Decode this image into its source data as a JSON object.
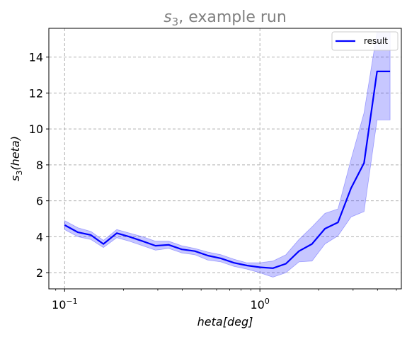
{
  "chart_data": {
    "type": "line",
    "title_main": "s",
    "title_sub": "3",
    "title_rest": ", example run",
    "xlabel": "heta[deg]",
    "ylabel_main": "s",
    "ylabel_sub": "3",
    "ylabel_rest": "(heta)",
    "xscale": "log",
    "xlim": [
      0.083,
      5.3
    ],
    "ylim": [
      1.1,
      15.6
    ],
    "x_tick_labels": [
      {
        "value": 0.1,
        "base": "10",
        "exp": "−1"
      },
      {
        "value": 1,
        "base": "10",
        "exp": "0"
      }
    ],
    "y_ticks": [
      2,
      4,
      6,
      8,
      10,
      12,
      14
    ],
    "grid": true,
    "legend": {
      "position": "top-right",
      "entries": [
        "result"
      ]
    },
    "series": [
      {
        "name": "result",
        "color": "#0000ff",
        "band_color": "#0000ff",
        "x": [
          0.1,
          0.117,
          0.136,
          0.158,
          0.185,
          0.215,
          0.251,
          0.292,
          0.341,
          0.398,
          0.464,
          0.541,
          0.631,
          0.736,
          0.858,
          1.0,
          1.166,
          1.359,
          1.585,
          1.848,
          2.154,
          2.512,
          2.929,
          3.415,
          3.981,
          4.64
        ],
        "values": [
          4.65,
          4.25,
          4.1,
          3.6,
          4.2,
          4.0,
          3.75,
          3.5,
          3.55,
          3.3,
          3.2,
          2.95,
          2.8,
          2.55,
          2.4,
          2.3,
          2.25,
          2.5,
          3.2,
          3.6,
          4.45,
          4.8,
          6.7,
          8.1,
          13.2,
          13.2
        ],
        "lower": [
          4.4,
          4.0,
          3.85,
          3.4,
          3.95,
          3.75,
          3.5,
          3.25,
          3.35,
          3.1,
          3.0,
          2.7,
          2.6,
          2.35,
          2.2,
          2.0,
          1.75,
          2.0,
          2.6,
          2.65,
          3.6,
          4.05,
          5.1,
          5.4,
          10.5,
          10.5
        ],
        "upper": [
          4.9,
          4.5,
          4.3,
          3.8,
          4.4,
          4.2,
          4.0,
          3.75,
          3.75,
          3.5,
          3.35,
          3.15,
          3.0,
          2.75,
          2.55,
          2.55,
          2.65,
          3.0,
          3.85,
          4.55,
          5.3,
          5.55,
          8.3,
          10.9,
          15.4,
          15.4
        ]
      }
    ]
  }
}
